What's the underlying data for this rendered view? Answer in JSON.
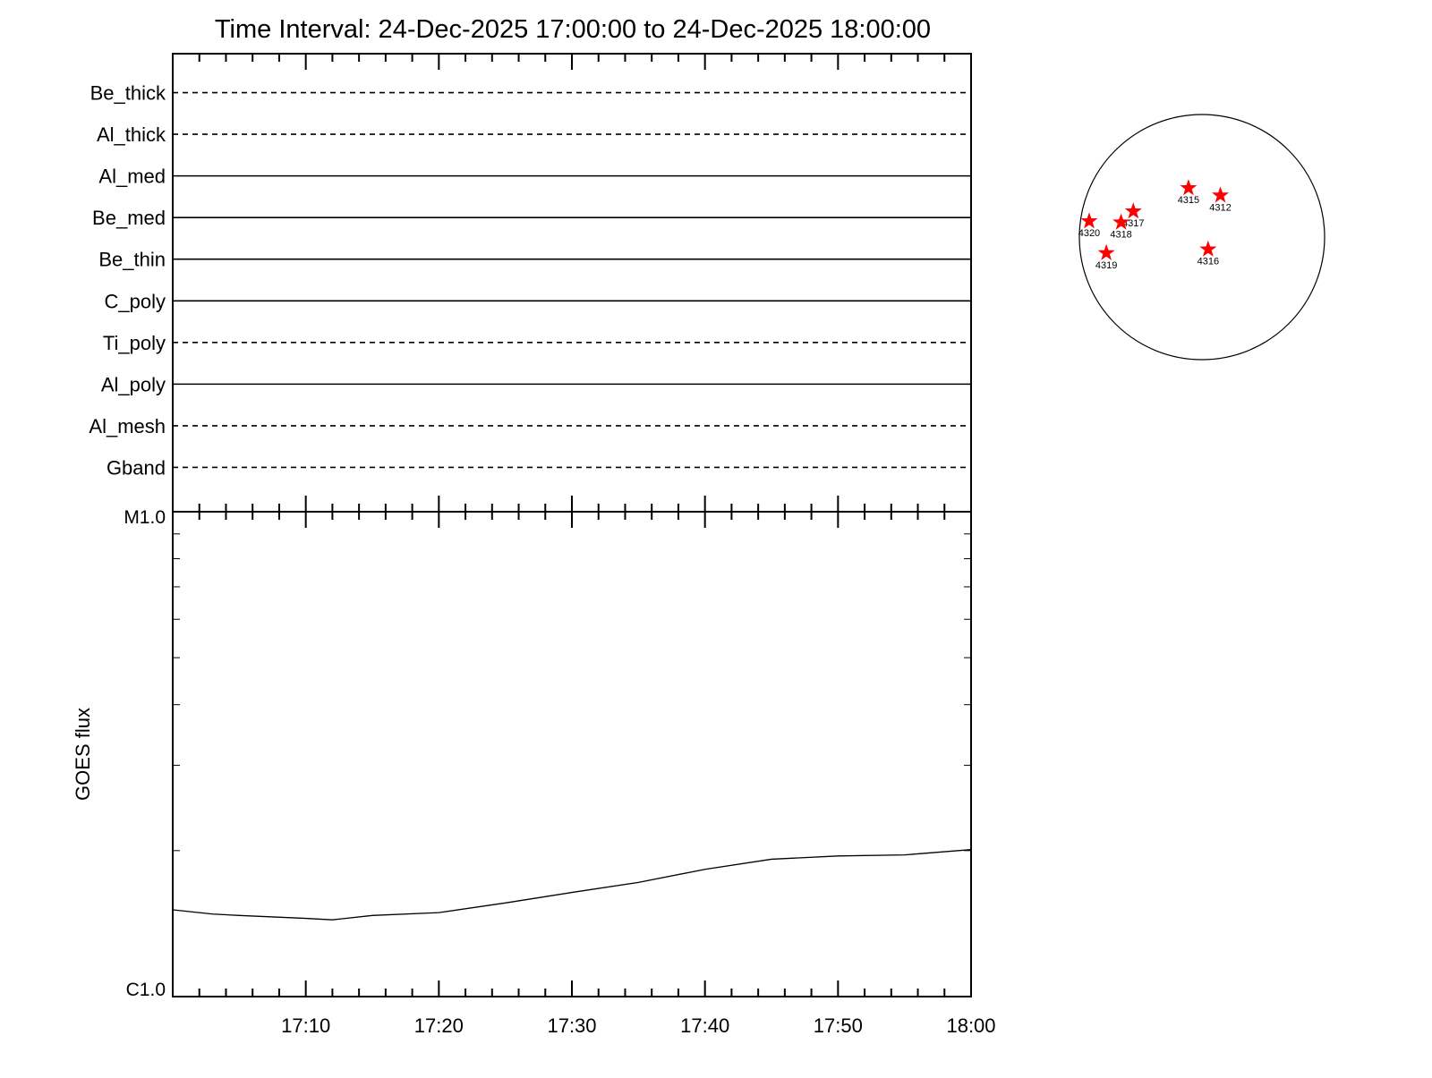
{
  "chart_data": {
    "type": "xrt-timeline",
    "title": "Time Interval: 24-Dec-2025 17:00:00 to 24-Dec-2025 18:00:00",
    "filters": [
      {
        "name": "Be_thick",
        "style": "dashed"
      },
      {
        "name": "Al_thick",
        "style": "dashed"
      },
      {
        "name": "Al_med",
        "style": "solid"
      },
      {
        "name": "Be_med",
        "style": "solid"
      },
      {
        "name": "Be_thin",
        "style": "solid"
      },
      {
        "name": "C_poly",
        "style": "solid"
      },
      {
        "name": "Ti_poly",
        "style": "dashed"
      },
      {
        "name": "Al_poly",
        "style": "solid"
      },
      {
        "name": "Al_mesh",
        "style": "dashed"
      },
      {
        "name": "Gband",
        "style": "dashed"
      }
    ],
    "goes": {
      "type": "line",
      "ylabel": "GOES flux",
      "log_scale": true,
      "color": "#000000",
      "x": [
        "17:00",
        "17:03",
        "17:05",
        "17:10",
        "17:12",
        "17:15",
        "17:20",
        "17:25",
        "17:30",
        "17:35",
        "17:40",
        "17:45",
        "17:50",
        "17:55",
        "18:00"
      ],
      "values": [
        1.51e-06,
        1.48e-06,
        1.47e-06,
        1.45e-06,
        1.44e-06,
        1.47e-06,
        1.49e-06,
        1.56e-06,
        1.64e-06,
        1.72e-06,
        1.83e-06,
        1.92e-06,
        1.95e-06,
        1.96e-06,
        2.01e-06
      ],
      "xlim": [
        "17:00",
        "18:00"
      ],
      "xticks": [
        "17:10",
        "17:20",
        "17:30",
        "17:40",
        "17:50",
        "18:00"
      ],
      "xminorticks": [
        "17:02",
        "17:04",
        "17:06",
        "17:08",
        "17:12",
        "17:14",
        "17:16",
        "17:18",
        "17:22",
        "17:24",
        "17:26",
        "17:28",
        "17:32",
        "17:34",
        "17:36",
        "17:38",
        "17:42",
        "17:44",
        "17:46",
        "17:48",
        "17:52",
        "17:54",
        "17:56",
        "17:58"
      ],
      "ylim": [
        1e-06,
        1e-05
      ],
      "yticks": [
        {
          "value": 1e-06,
          "label": "C1.0"
        },
        {
          "value": 1e-05,
          "label": "M1.0"
        }
      ],
      "yminorticks": [
        2e-06,
        3e-06,
        4e-06,
        5e-06,
        6e-06,
        7e-06,
        8e-06,
        9e-06
      ]
    },
    "disk": {
      "type": "scatter",
      "color": "#ff0000",
      "regions": [
        {
          "label": "4315",
          "x": -0.11,
          "y": 0.4
        },
        {
          "label": "4312",
          "x": 0.15,
          "y": 0.34
        },
        {
          "label": "4317",
          "x": -0.56,
          "y": 0.21
        },
        {
          "label": "4318",
          "x": -0.66,
          "y": 0.12
        },
        {
          "label": "4320",
          "x": -0.92,
          "y": 0.13
        },
        {
          "label": "4319",
          "x": -0.78,
          "y": -0.13
        },
        {
          "label": "4316",
          "x": 0.05,
          "y": -0.1
        }
      ]
    }
  }
}
